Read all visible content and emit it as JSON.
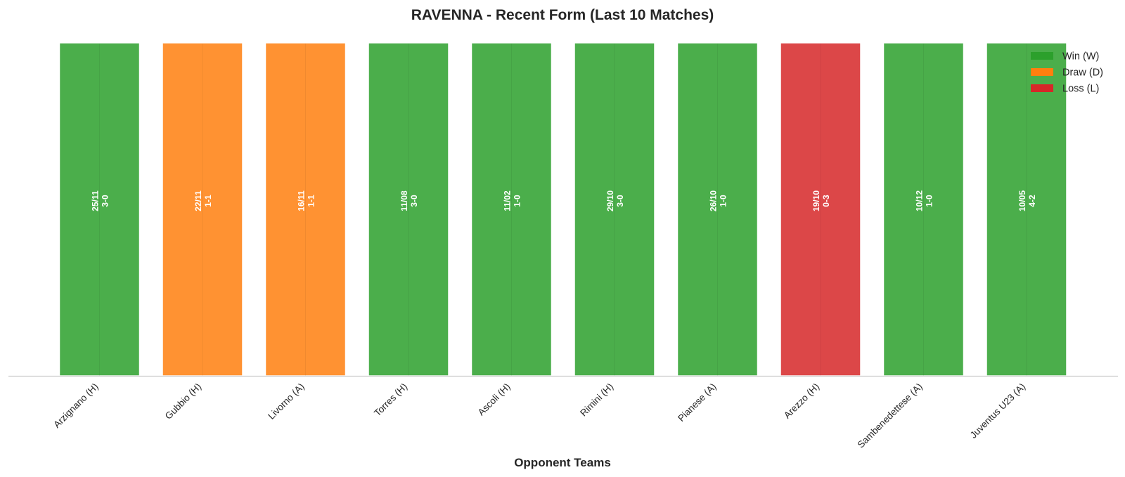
{
  "chart_data": {
    "type": "bar",
    "title": "RAVENNA - Recent Form (Last 10 Matches)",
    "xlabel": "Opponent Teams",
    "ylabel": "",
    "ylim": [
      0,
      1
    ],
    "grid": false,
    "legend_position": "top-right",
    "legend": [
      {
        "key": "W",
        "label": "Win (W)",
        "color": "#2ca02c"
      },
      {
        "key": "D",
        "label": "Draw (D)",
        "color": "#ff7f0e"
      },
      {
        "key": "L",
        "label": "Loss (L)",
        "color": "#d62728"
      }
    ],
    "categories": [
      "Arzignano (H)",
      "Gubbio (H)",
      "Livorno (A)",
      "Torres (H)",
      "Ascoli (H)",
      "Rimini (H)",
      "Pianese (A)",
      "Arezzo (H)",
      "Sambenedettese (A)",
      "Juventus U23 (A)"
    ],
    "values": [
      1,
      1,
      1,
      1,
      1,
      1,
      1,
      1,
      1,
      1
    ],
    "results": [
      "W",
      "D",
      "D",
      "W",
      "W",
      "W",
      "W",
      "L",
      "W",
      "W"
    ],
    "dates": [
      "25/11",
      "22/11",
      "16/11",
      "11/08",
      "11/02",
      "29/10",
      "26/10",
      "19/10",
      "10/12",
      "10/05"
    ],
    "scores": [
      "3-0",
      "1-1",
      "1-1",
      "3-0",
      "1-0",
      "3-0",
      "1-0",
      "0-3",
      "1-0",
      "4-2"
    ]
  }
}
